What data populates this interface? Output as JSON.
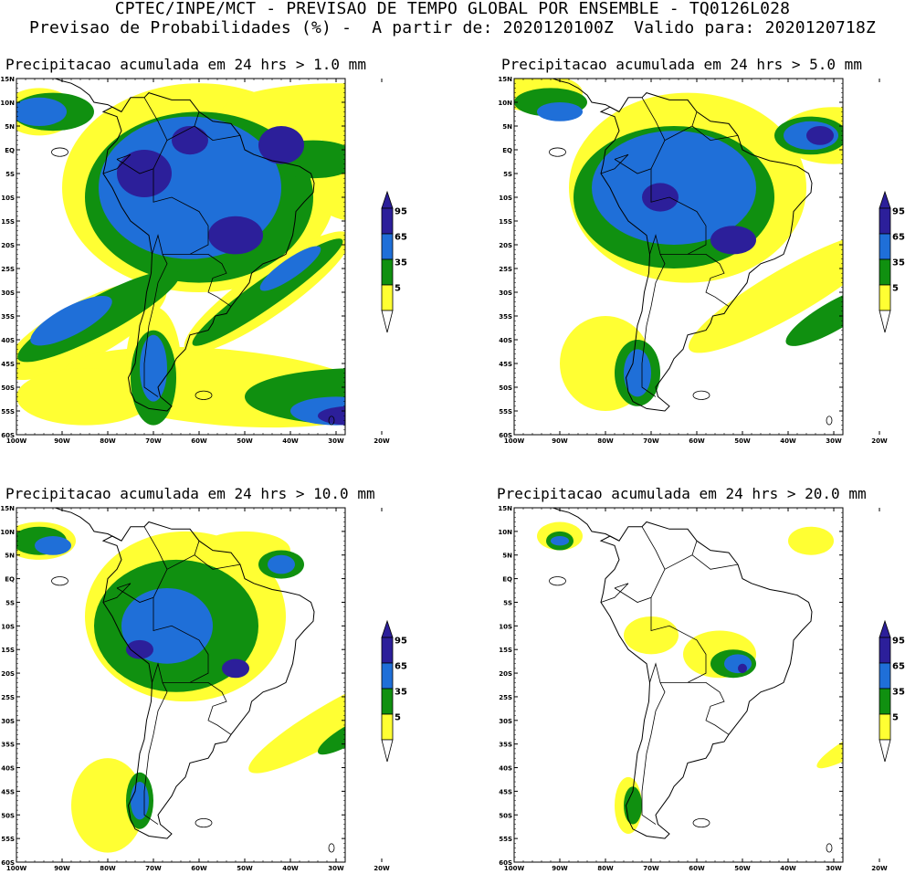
{
  "header": {
    "line1": "CPTEC/INPE/MCT - PREVISAO DE TEMPO GLOBAL POR ENSEMBLE - TQ0126L028",
    "line2": "Previsao de Probabilidades (%) -  A partir de: 2020120100Z  Valido para: 2020120718Z"
  },
  "colors": {
    "p5": "#ffff33",
    "p35": "#109010",
    "p65": "#1f6fd8",
    "p95": "#2c1f9a",
    "coast": "#000000"
  },
  "axes": {
    "lat_labels": [
      "15N",
      "10N",
      "5N",
      "EQ",
      "5S",
      "10S",
      "15S",
      "20S",
      "25S",
      "30S",
      "35S",
      "40S",
      "45S",
      "50S",
      "55S",
      "60S"
    ],
    "lon_labels": [
      "100W",
      "90W",
      "80W",
      "70W",
      "60W",
      "50W",
      "40W",
      "30W",
      "20W"
    ]
  },
  "legend": {
    "labels": [
      "95",
      "65",
      "35",
      "5"
    ]
  },
  "panels": [
    {
      "title": "Precipitacao acumulada em 24 hrs > 1.0 mm",
      "threshold_mm": 1.0
    },
    {
      "title": "Precipitacao acumulada em 24 hrs > 5.0 mm",
      "threshold_mm": 5.0
    },
    {
      "title": "Precipitacao acumulada em 24 hrs > 10.0 mm",
      "threshold_mm": 10.0
    },
    {
      "title": "Precipitacao acumulada em 24 hrs > 20.0 mm",
      "threshold_mm": 20.0
    }
  ]
}
